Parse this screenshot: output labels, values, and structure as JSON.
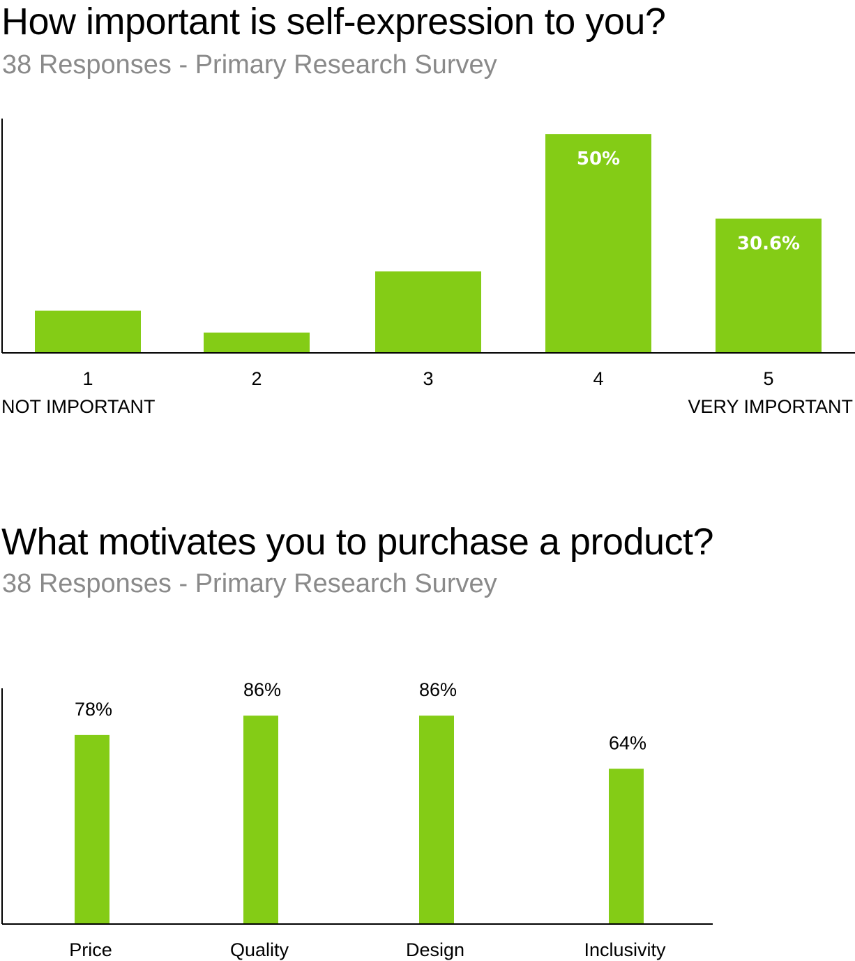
{
  "colors": {
    "bar": "#84cc16",
    "axis": "#000000",
    "subtitle": "#8a8a8a"
  },
  "chart_data": [
    {
      "type": "bar",
      "title": "How important is self-expression to you?",
      "subtitle": "38 Responses - Primary Research Survey",
      "categories": [
        "1",
        "2",
        "3",
        "4",
        "5"
      ],
      "values": [
        9.5,
        4.5,
        18.5,
        50,
        30.6
      ],
      "data_labels": [
        "",
        "",
        "",
        "50%",
        "30.6%"
      ],
      "scale_anchors": {
        "low": "NOT IMPORTANT",
        "high": "VERY IMPORTANT"
      },
      "xlabel": "",
      "ylabel": "",
      "ylim": [
        0,
        53.7
      ],
      "grid": false,
      "legend": "none"
    },
    {
      "type": "bar",
      "title": "What motivates you to purchase a product?",
      "subtitle": "38 Responses - Primary Research Survey",
      "categories": [
        "Price",
        "Quality",
        "Design",
        "Inclusivity"
      ],
      "values": [
        78,
        86,
        86,
        64
      ],
      "data_labels": [
        "78%",
        "86%",
        "86%",
        "64%"
      ],
      "xlabel": "",
      "ylabel": "",
      "ylim": [
        0,
        97.6
      ],
      "grid": false,
      "legend": "none"
    }
  ]
}
